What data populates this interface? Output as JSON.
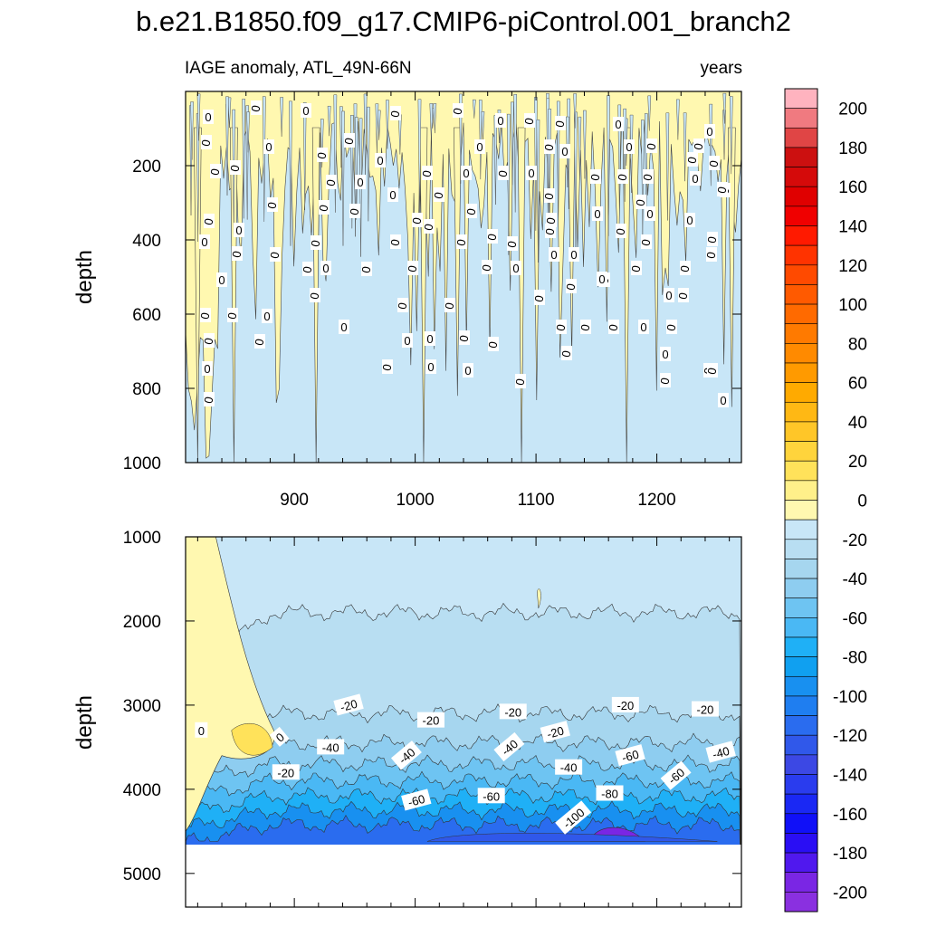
{
  "chart_data": {
    "type": "heatmap",
    "title": "b.e21.B1850.f09_g17.CMIP6-piControl.001_branch2",
    "subtitle_left": "IAGE anomaly, ATL_49N-66N",
    "subtitle_right": "years",
    "ylabel": "depth",
    "x_range": [
      810,
      1270
    ],
    "x_ticks": [
      "900",
      "1000",
      "1100",
      "1200"
    ],
    "top_panel": {
      "ylim": [
        0,
        1000
      ],
      "y_ticks": [
        "200",
        "400",
        "600",
        "800",
        "1000"
      ],
      "contour_labels": [
        "0",
        "0",
        "0",
        "0",
        "0",
        "0",
        "0",
        "0",
        "0",
        "0",
        "0",
        "0",
        "0",
        "0",
        "0",
        "0",
        "0",
        "0",
        "0",
        "0",
        "0",
        "0",
        "0",
        "0"
      ]
    },
    "bottom_panel": {
      "ylim": [
        1000,
        5400
      ],
      "data_bottom_depth": 4600,
      "y_ticks": [
        "1000",
        "2000",
        "3000",
        "4000",
        "5000"
      ],
      "contour_labels": [
        {
          "text": "0",
          "x": 823,
          "depth": 3300
        },
        {
          "text": "0",
          "x": 888,
          "depth": 3380
        },
        {
          "text": "-20",
          "x": 893,
          "depth": 3800
        },
        {
          "text": "-20",
          "x": 945,
          "depth": 3000
        },
        {
          "text": "-40",
          "x": 930,
          "depth": 3500
        },
        {
          "text": "-40",
          "x": 993,
          "depth": 3600
        },
        {
          "text": "-20",
          "x": 1013,
          "depth": 3180
        },
        {
          "text": "-60",
          "x": 1001,
          "depth": 4130
        },
        {
          "text": "-20",
          "x": 1081,
          "depth": 3080
        },
        {
          "text": "-40",
          "x": 1078,
          "depth": 3500
        },
        {
          "text": "-60",
          "x": 1063,
          "depth": 4080
        },
        {
          "text": "-20",
          "x": 1116,
          "depth": 3320
        },
        {
          "text": "-40",
          "x": 1127,
          "depth": 3740
        },
        {
          "text": "-100",
          "x": 1131,
          "depth": 4340
        },
        {
          "text": "-80",
          "x": 1161,
          "depth": 4050
        },
        {
          "text": "-60",
          "x": 1178,
          "depth": 3600
        },
        {
          "text": "-20",
          "x": 1174,
          "depth": 3000
        },
        {
          "text": "-60",
          "x": 1216,
          "depth": 3840
        },
        {
          "text": "-20",
          "x": 1240,
          "depth": 3050
        },
        {
          "text": "-40",
          "x": 1253,
          "depth": 3560
        }
      ]
    },
    "colorbar": {
      "min": -210,
      "max": 210,
      "interval": 10,
      "tick_labels": [
        "200",
        "180",
        "160",
        "140",
        "120",
        "100",
        "80",
        "60",
        "40",
        "20",
        "0",
        "-20",
        "-40",
        "-60",
        "-80",
        "-100",
        "-120",
        "-140",
        "-160",
        "-180",
        "-200"
      ],
      "colors_top_to_bottom": [
        "#ffb3bf",
        "#f07a80",
        "#e04545",
        "#cc1010",
        "#d50a0a",
        "#e00000",
        "#f00000",
        "#ff1a00",
        "#ff3300",
        "#ff4a00",
        "#ff5a00",
        "#ff6a00",
        "#ff7a00",
        "#ff8a00",
        "#ff9a00",
        "#ffaa00",
        "#ffb814",
        "#ffc628",
        "#ffd43c",
        "#ffe25a",
        "#fff08a",
        "#fff8b0",
        "#c8e6f7",
        "#b8def2",
        "#a6d6ef",
        "#8ecdf0",
        "#6ec4f2",
        "#4ab8f4",
        "#1fb0f6",
        "#10a0f0",
        "#1890f0",
        "#1f7ef0",
        "#2a6cef",
        "#3058ea",
        "#3c48e4",
        "#2a3cee",
        "#1a28f4",
        "#1010f8",
        "#2a0ef4",
        "#5018ee",
        "#7a26e4",
        "#8a30e0"
      ]
    }
  }
}
